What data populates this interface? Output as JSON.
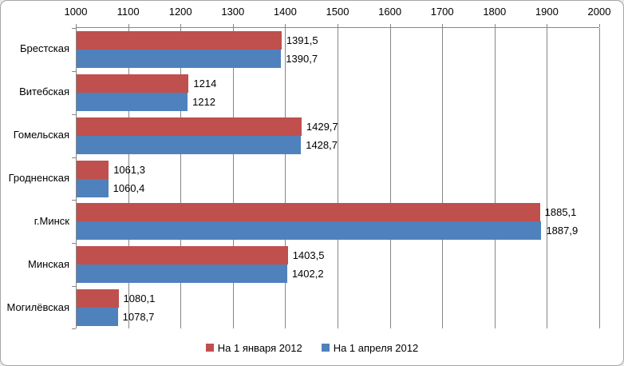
{
  "chart_data": {
    "type": "bar",
    "orientation": "horizontal",
    "title": "",
    "categories": [
      "Брестская",
      "Витебская",
      "Гомельская",
      "Гродненская",
      "г.Минск",
      "Минская",
      "Могилёвская"
    ],
    "series": [
      {
        "name": "На 1 января 2012",
        "color": "#C0504D",
        "values": [
          1391.5,
          1214,
          1429.7,
          1061.3,
          1885.1,
          1403.5,
          1080.1
        ],
        "data_labels": [
          "1391,5",
          "1214",
          "1429,7",
          "1061,3",
          "1885,1",
          "1403,5",
          "1080,1"
        ]
      },
      {
        "name": "На 1 апреля 2012",
        "color": "#4F81BD",
        "values": [
          1390.7,
          1212,
          1428.7,
          1060.4,
          1887.9,
          1402.2,
          1078.7
        ],
        "data_labels": [
          "1390,7",
          "1212",
          "1428,7",
          "1060,4",
          "1887,9",
          "1402,2",
          "1078,7"
        ]
      }
    ],
    "xlim": [
      1000,
      2000
    ],
    "x_ticks": [
      1000,
      1100,
      1200,
      1300,
      1400,
      1500,
      1600,
      1700,
      1800,
      1900,
      2000
    ],
    "x_tick_labels": [
      "1000",
      "1100",
      "1200",
      "1300",
      "1400",
      "1500",
      "1600",
      "1700",
      "1800",
      "1900",
      "2000"
    ],
    "grid": true,
    "value_axis_position": "top",
    "legend_position": "bottom"
  },
  "legend": {
    "items": [
      {
        "label": "На 1 января 2012",
        "color": "#C0504D"
      },
      {
        "label": "На 1 апреля 2012",
        "color": "#4F81BD"
      }
    ]
  },
  "colors": {
    "grid": "#868686",
    "axis": "#868686",
    "text": "#000000",
    "frame_border": "#A6A6A6",
    "background": "#FFFFFF",
    "series1": "#C0504D",
    "series2": "#4F81BD"
  }
}
